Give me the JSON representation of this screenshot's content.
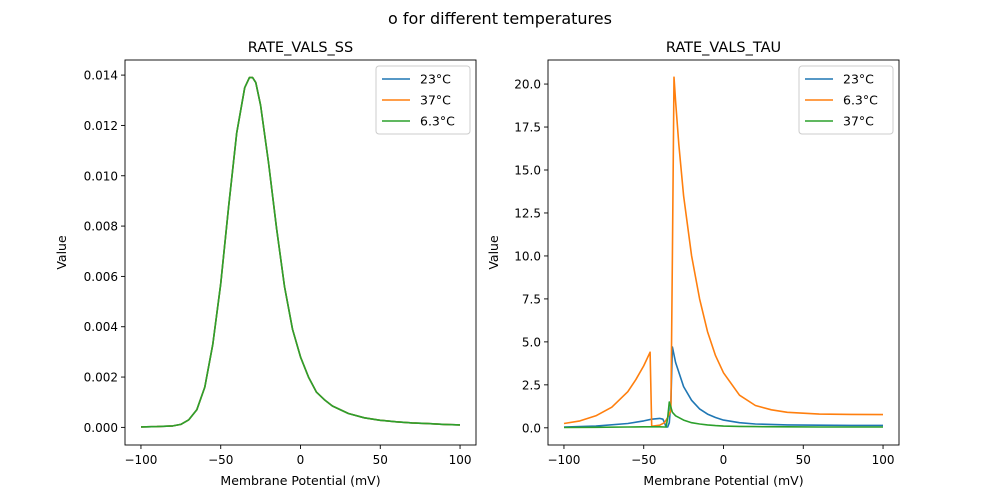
{
  "figure": {
    "suptitle": "o for different temperatures"
  },
  "chart_data": [
    {
      "type": "line",
      "title": "RATE_VALS_SS",
      "xlabel": "Membrane Potential (mV)",
      "ylabel": "Value",
      "xlim": [
        -110,
        110
      ],
      "ylim": [
        -0.0007,
        0.0146
      ],
      "xticks": [
        -100,
        -50,
        0,
        50,
        100
      ],
      "xtick_labels": [
        "−100",
        "−50",
        "0",
        "50",
        "100"
      ],
      "yticks": [
        0,
        0.002,
        0.004,
        0.006,
        0.008,
        0.01,
        0.012,
        0.014
      ],
      "ytick_labels": [
        "0.000",
        "0.002",
        "0.004",
        "0.006",
        "0.008",
        "0.010",
        "0.012",
        "0.014"
      ],
      "legend_position": "upper-right",
      "x": [
        -100,
        -90,
        -80,
        -75,
        -70,
        -65,
        -60,
        -55,
        -50,
        -45,
        -40,
        -35,
        -32,
        -30,
        -28,
        -25,
        -20,
        -15,
        -10,
        -5,
        0,
        5,
        10,
        15,
        20,
        30,
        40,
        50,
        60,
        70,
        80,
        90,
        100
      ],
      "series": [
        {
          "name": "23°C",
          "color": "#1f77b4",
          "values": [
            2e-05,
            3e-05,
            6e-05,
            0.00012,
            0.0003,
            0.0007,
            0.0016,
            0.0033,
            0.0057,
            0.0088,
            0.0117,
            0.0135,
            0.0139,
            0.0139,
            0.0137,
            0.0128,
            0.0105,
            0.0079,
            0.0056,
            0.0039,
            0.0028,
            0.002,
            0.0014,
            0.0011,
            0.00085,
            0.00055,
            0.00038,
            0.00028,
            0.00022,
            0.00018,
            0.00015,
            0.00012,
            0.0001
          ]
        },
        {
          "name": "37°C",
          "color": "#ff7f0e",
          "values": [
            2e-05,
            3e-05,
            6e-05,
            0.00012,
            0.0003,
            0.0007,
            0.0016,
            0.0033,
            0.0057,
            0.0088,
            0.0117,
            0.0135,
            0.0139,
            0.0139,
            0.0137,
            0.0128,
            0.0105,
            0.0079,
            0.0056,
            0.0039,
            0.0028,
            0.002,
            0.0014,
            0.0011,
            0.00085,
            0.00055,
            0.00038,
            0.00028,
            0.00022,
            0.00018,
            0.00015,
            0.00012,
            0.0001
          ]
        },
        {
          "name": "6.3°C",
          "color": "#2ca02c",
          "values": [
            2e-05,
            3e-05,
            6e-05,
            0.00012,
            0.0003,
            0.0007,
            0.0016,
            0.0033,
            0.0057,
            0.0088,
            0.0117,
            0.0135,
            0.0139,
            0.0139,
            0.0137,
            0.0128,
            0.0105,
            0.0079,
            0.0056,
            0.0039,
            0.0028,
            0.002,
            0.0014,
            0.0011,
            0.00085,
            0.00055,
            0.00038,
            0.00028,
            0.00022,
            0.00018,
            0.00015,
            0.00012,
            0.0001
          ]
        }
      ]
    },
    {
      "type": "line",
      "title": "RATE_VALS_TAU",
      "xlabel": "Membrane Potential (mV)",
      "ylabel": "Value",
      "xlim": [
        -110,
        110
      ],
      "ylim": [
        -1.0,
        21.4
      ],
      "xticks": [
        -100,
        -50,
        0,
        50,
        100
      ],
      "xtick_labels": [
        "−100",
        "−50",
        "0",
        "50",
        "100"
      ],
      "yticks": [
        0,
        2.5,
        5,
        7.5,
        10,
        12.5,
        15,
        17.5,
        20
      ],
      "ytick_labels": [
        "0.0",
        "2.5",
        "5.0",
        "7.5",
        "10.0",
        "12.5",
        "15.0",
        "17.5",
        "20.0"
      ],
      "legend_position": "upper-right",
      "series": [
        {
          "name": "23°C",
          "color": "#1f77b4",
          "x": [
            -100,
            -80,
            -60,
            -50,
            -45,
            -40,
            -38,
            -37,
            -36,
            -35,
            -34,
            -33,
            -32,
            -30,
            -25,
            -20,
            -15,
            -10,
            -5,
            0,
            10,
            20,
            40,
            60,
            80,
            100
          ],
          "values": [
            0.05,
            0.1,
            0.25,
            0.4,
            0.5,
            0.55,
            0.5,
            0.3,
            0.05,
            0.05,
            0.3,
            1.5,
            4.7,
            3.8,
            2.4,
            1.6,
            1.1,
            0.8,
            0.6,
            0.45,
            0.3,
            0.22,
            0.17,
            0.15,
            0.14,
            0.14
          ]
        },
        {
          "name": "6.3°C",
          "color": "#ff7f0e",
          "x": [
            -100,
            -90,
            -80,
            -70,
            -60,
            -55,
            -50,
            -46,
            -45,
            -44,
            -40,
            -37,
            -35,
            -33,
            -32,
            -31,
            -30,
            -28,
            -25,
            -20,
            -15,
            -10,
            -5,
            0,
            10,
            20,
            30,
            40,
            60,
            80,
            100
          ],
          "values": [
            0.25,
            0.4,
            0.7,
            1.2,
            2.1,
            2.8,
            3.6,
            4.4,
            0.1,
            0.1,
            0.15,
            0.3,
            0.6,
            1.0,
            10.0,
            20.4,
            19.0,
            16.5,
            13.5,
            10.0,
            7.5,
            5.6,
            4.2,
            3.2,
            1.9,
            1.3,
            1.05,
            0.9,
            0.8,
            0.78,
            0.77
          ]
        },
        {
          "name": "37°C",
          "color": "#2ca02c",
          "x": [
            -100,
            -80,
            -60,
            -50,
            -40,
            -37,
            -36,
            -35,
            -34,
            -33,
            -32,
            -30,
            -25,
            -20,
            -15,
            -10,
            -5,
            0,
            10,
            20,
            40,
            60,
            80,
            100
          ],
          "values": [
            0.02,
            0.03,
            0.05,
            0.06,
            0.06,
            0.05,
            0.05,
            0.6,
            1.5,
            1.2,
            0.9,
            0.7,
            0.45,
            0.3,
            0.22,
            0.17,
            0.13,
            0.1,
            0.08,
            0.07,
            0.06,
            0.05,
            0.05,
            0.05
          ]
        }
      ]
    }
  ]
}
